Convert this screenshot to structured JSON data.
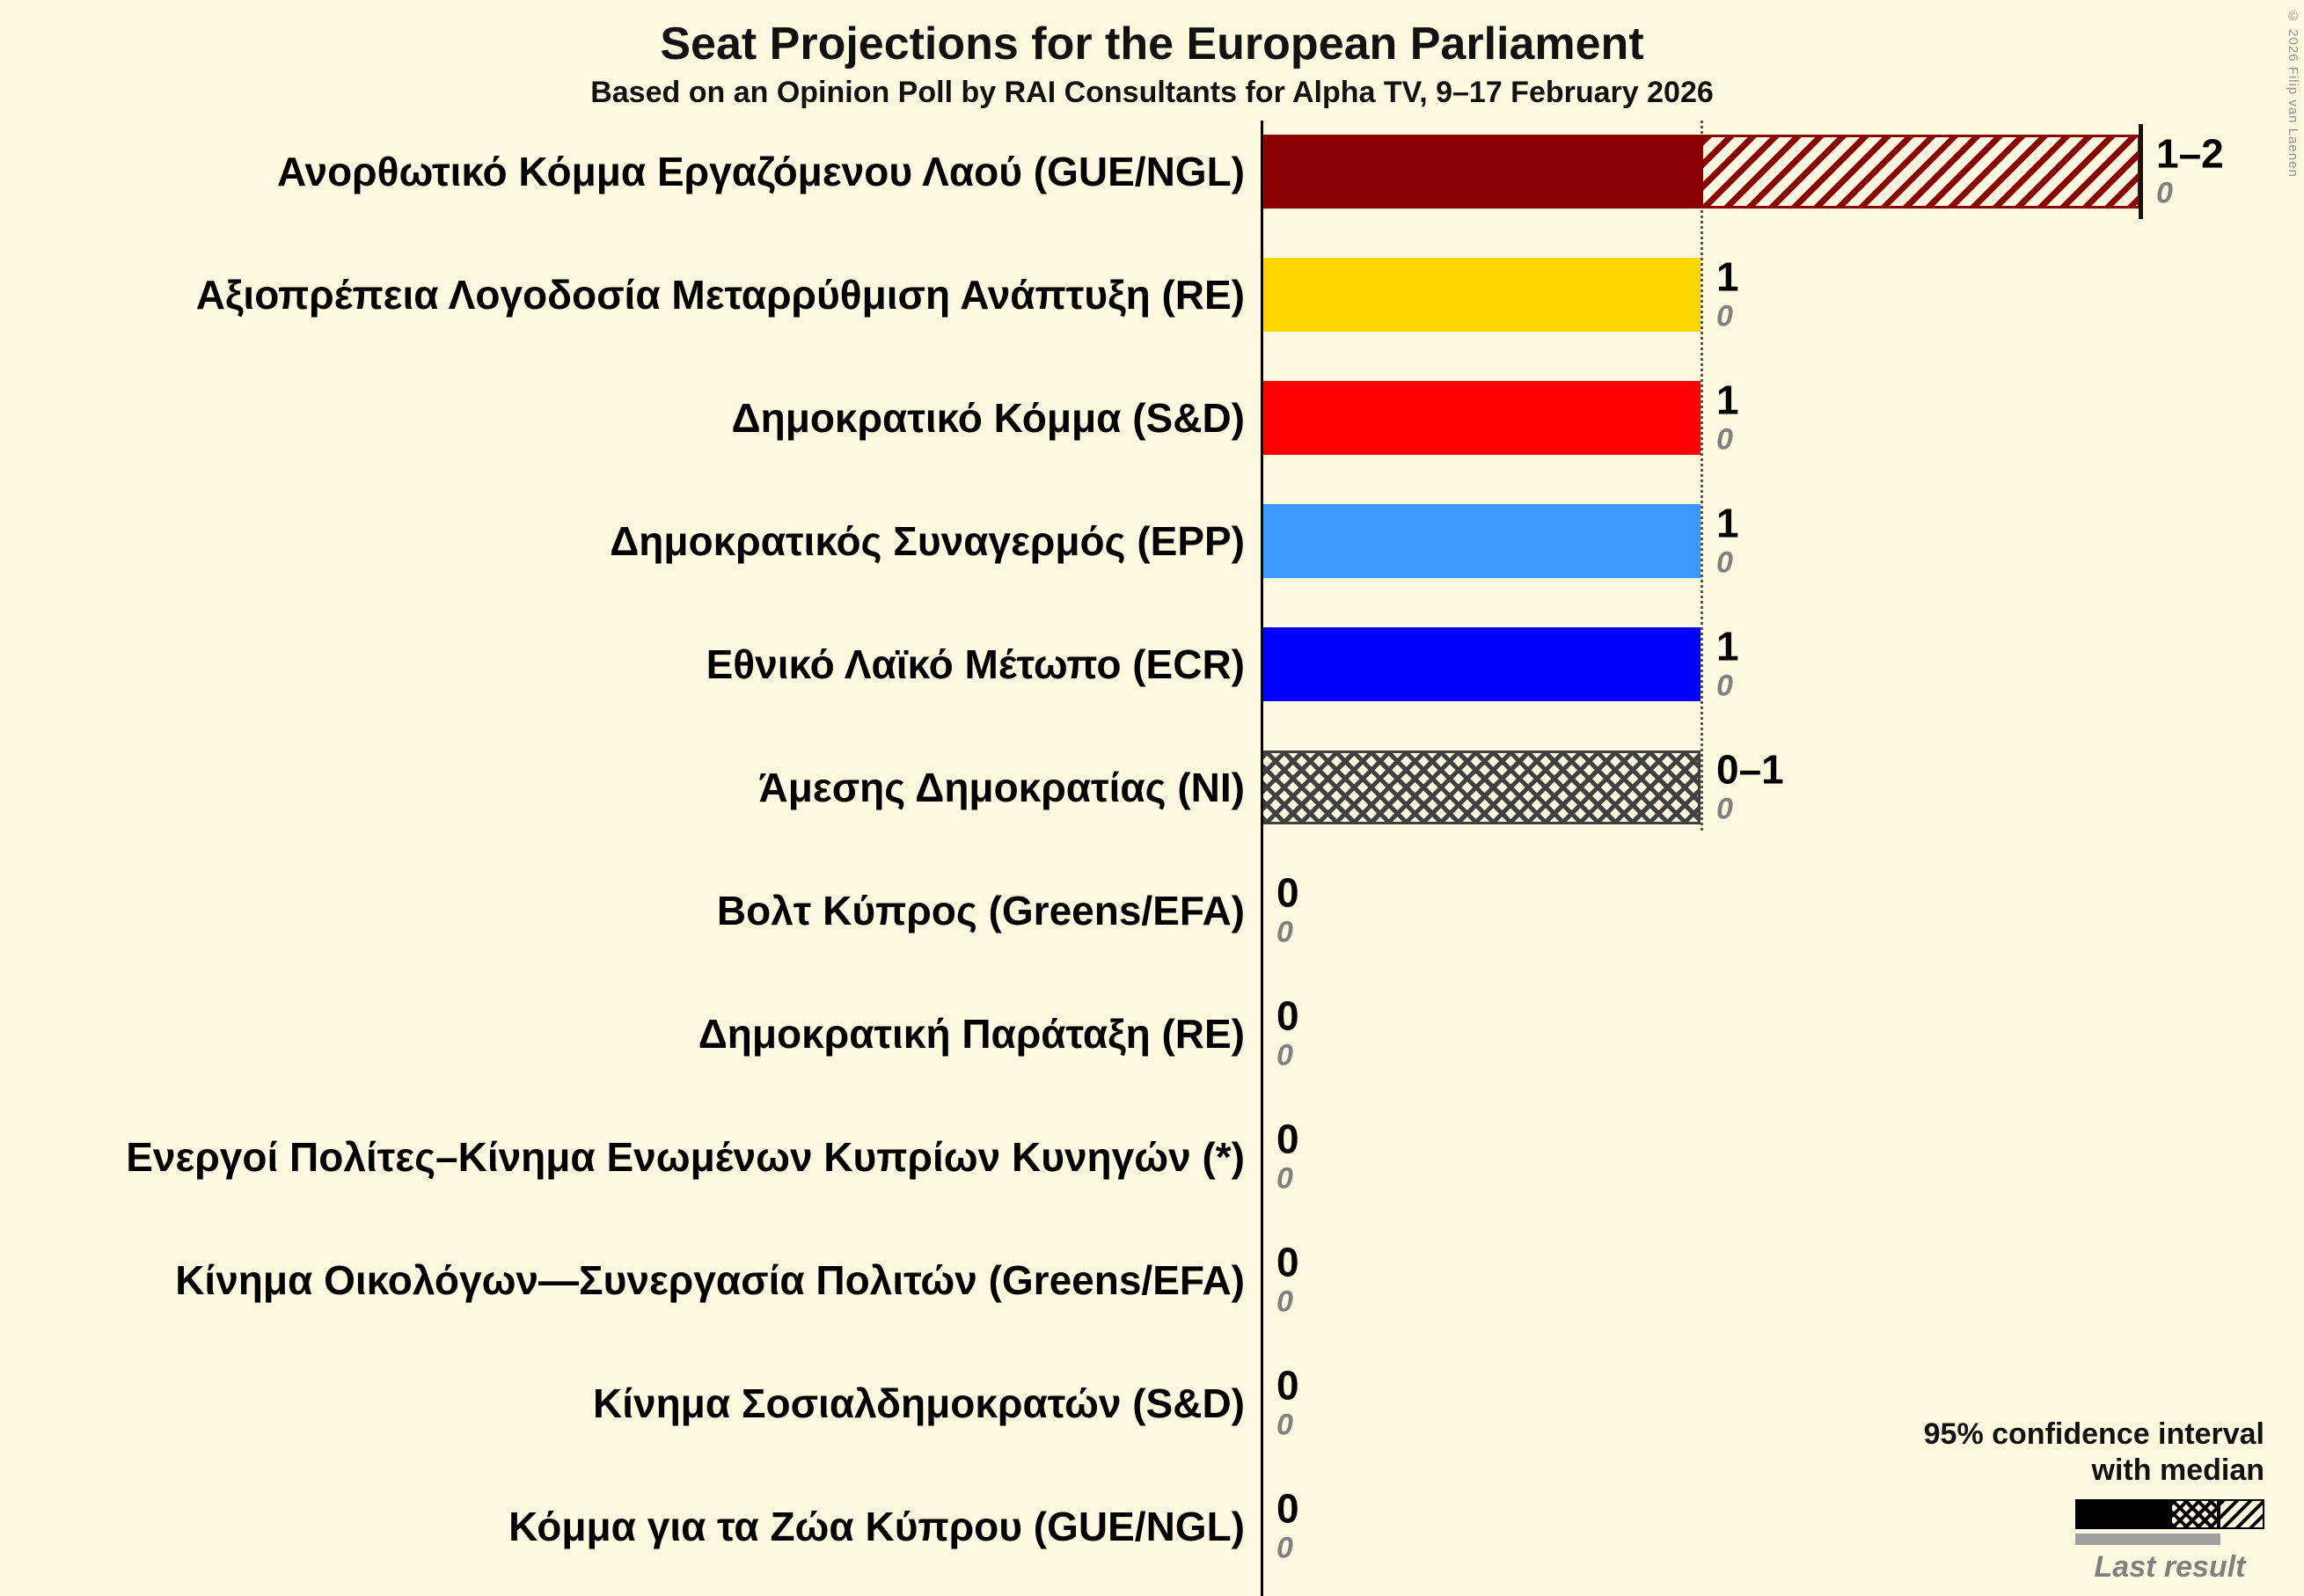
{
  "title": "Seat Projections for the European Parliament",
  "subtitle": "Based on an Opinion Poll by RAI Consultants for Alpha TV, 9–17 February 2026",
  "copyright": "© 2026 Filip van Laenen",
  "legend": {
    "line1": "95% confidence interval",
    "line2": "with median",
    "last_result": "Last result"
  },
  "colors": {
    "background": "#FDF9E0",
    "text": "#000000",
    "muted_text": "#808080",
    "last_result_bar": "#A0A0A0",
    "axis": "#000000"
  },
  "chart_data": {
    "type": "bar",
    "orientation": "horizontal",
    "title": "Seat Projections for the European Parliament",
    "x_axis": {
      "min": 0,
      "max": 2,
      "gridline_at": 1,
      "grid": "dotted line at 1 seat spanning rows with nonzero bars"
    },
    "legend_position": "bottom-right",
    "parties": [
      {
        "name": "Ανορθωτικό Κόμμα Εργαζόμενου Λαού (GUE/NGL)",
        "value_label": "1–2",
        "ci_low": 1,
        "ci_high": 2,
        "last_result": "0",
        "color": "#8B0000",
        "segments": [
          {
            "style": "solid",
            "from": 0,
            "to": 1
          },
          {
            "style": "diagonal",
            "from": 1,
            "to": 2
          }
        ],
        "median_line": 2
      },
      {
        "name": "Αξιοπρέπεια Λογοδοσία Μεταρρύθμιση Ανάπτυξη (RE)",
        "value_label": "1",
        "ci_low": 1,
        "ci_high": 1,
        "last_result": "0",
        "color": "#FFD700",
        "segments": [
          {
            "style": "solid",
            "from": 0,
            "to": 1
          }
        ]
      },
      {
        "name": "Δημοκρατικό Κόμμα (S&D)",
        "value_label": "1",
        "ci_low": 1,
        "ci_high": 1,
        "last_result": "0",
        "color": "#FF0000",
        "segments": [
          {
            "style": "solid",
            "from": 0,
            "to": 1
          }
        ]
      },
      {
        "name": "Δημοκρατικός Συναγερμός (EPP)",
        "value_label": "1",
        "ci_low": 1,
        "ci_high": 1,
        "last_result": "0",
        "color": "#3B99FF",
        "segments": [
          {
            "style": "solid",
            "from": 0,
            "to": 1
          }
        ]
      },
      {
        "name": "Εθνικό Λαϊκό Μέτωπο (ECR)",
        "value_label": "1",
        "ci_low": 1,
        "ci_high": 1,
        "last_result": "0",
        "color": "#0000FF",
        "segments": [
          {
            "style": "solid",
            "from": 0,
            "to": 1
          }
        ]
      },
      {
        "name": "Άμεσης Δημοκρατίας (NI)",
        "value_label": "0–1",
        "ci_low": 0,
        "ci_high": 1,
        "last_result": "0",
        "color": "#404040",
        "segments": [
          {
            "style": "crosshatch",
            "from": 0,
            "to": 1
          }
        ]
      },
      {
        "name": "Βολτ Κύπρος (Greens/EFA)",
        "value_label": "0",
        "ci_low": 0,
        "ci_high": 0,
        "last_result": "0",
        "color": "#606060",
        "segments": []
      },
      {
        "name": "Δημοκρατική Παράταξη (RE)",
        "value_label": "0",
        "ci_low": 0,
        "ci_high": 0,
        "last_result": "0",
        "color": "#606060",
        "segments": []
      },
      {
        "name": "Ενεργοί Πολίτες–Κίνημα Ενωμένων Κυπρίων Κυνηγών (*)",
        "value_label": "0",
        "ci_low": 0,
        "ci_high": 0,
        "last_result": "0",
        "color": "#606060",
        "segments": []
      },
      {
        "name": "Κίνημα Οικολόγων—Συνεργασία Πολιτών (Greens/EFA)",
        "value_label": "0",
        "ci_low": 0,
        "ci_high": 0,
        "last_result": "0",
        "color": "#606060",
        "segments": []
      },
      {
        "name": "Κίνημα Σοσιαλδημοκρατών (S&D)",
        "value_label": "0",
        "ci_low": 0,
        "ci_high": 0,
        "last_result": "0",
        "color": "#606060",
        "segments": []
      },
      {
        "name": "Κόμμα για τα Ζώα Κύπρου (GUE/NGL)",
        "value_label": "0",
        "ci_low": 0,
        "ci_high": 0,
        "last_result": "0",
        "color": "#606060",
        "segments": []
      }
    ]
  }
}
